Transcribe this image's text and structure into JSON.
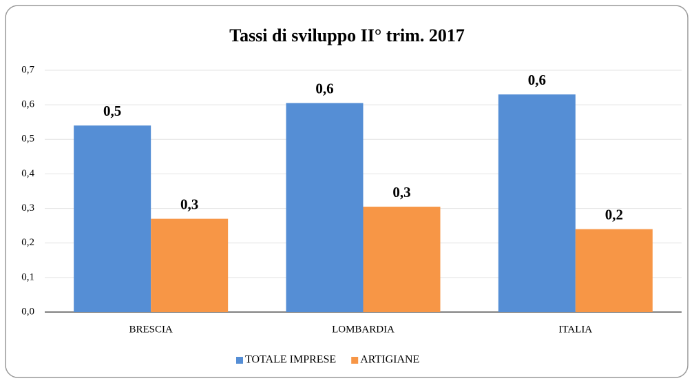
{
  "chart_data": {
    "type": "bar",
    "title": "Tassi di sviluppo II° trim. 2017",
    "categories": [
      "BRESCIA",
      "LOMBARDIA",
      "ITALIA"
    ],
    "series": [
      {
        "name": "TOTALE IMPRESE",
        "color": "#558ed5",
        "values": [
          0.54,
          0.605,
          0.63
        ],
        "value_labels": [
          "0,5",
          "0,6",
          "0,6"
        ]
      },
      {
        "name": "ARTIGIANE",
        "color": "#f79646",
        "values": [
          0.27,
          0.305,
          0.24
        ],
        "value_labels": [
          "0,3",
          "0,3",
          "0,2"
        ]
      }
    ],
    "ylim": [
      0,
      0.7
    ],
    "yticks": [
      {
        "value": 0,
        "label": "0,0"
      },
      {
        "value": 0.1,
        "label": "0,1"
      },
      {
        "value": 0.2,
        "label": "0,2"
      },
      {
        "value": 0.3,
        "label": "0,3"
      },
      {
        "value": 0.4,
        "label": "0,4"
      },
      {
        "value": 0.5,
        "label": "0,5"
      },
      {
        "value": 0.6,
        "label": "0,6"
      },
      {
        "value": 0.7,
        "label": "0,7"
      }
    ],
    "grid": true,
    "legend": "bottom"
  }
}
